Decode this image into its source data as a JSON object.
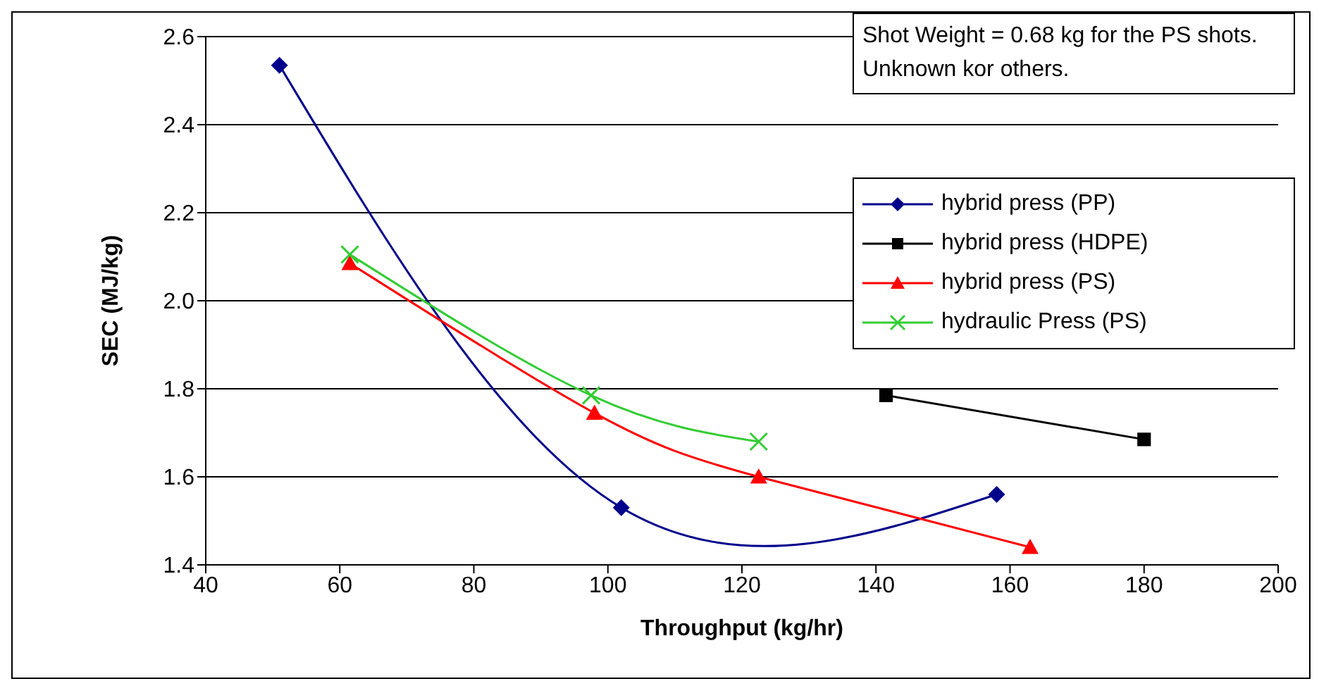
{
  "chart_data": {
    "type": "line",
    "xlabel": "Throughput (kg/hr)",
    "ylabel": "SEC (MJ/kg)",
    "annotations": [
      "Shot Weight = 0.68 kg for the PS shots. Unknown kor others."
    ],
    "xlim": [
      40,
      200
    ],
    "xticks": [
      40,
      60,
      80,
      100,
      120,
      140,
      160,
      180,
      200
    ],
    "ylim": [
      1.4,
      2.6
    ],
    "yticks": [
      {
        "value": 1.4,
        "label": "1.4"
      },
      {
        "value": 1.6,
        "label": "1.6"
      },
      {
        "value": 1.8,
        "label": "1.8"
      },
      {
        "value": 2,
        "label": "2.0"
      },
      {
        "value": 2.2,
        "label": "2.2"
      },
      {
        "value": 2.4,
        "label": "2.4"
      },
      {
        "value": 2.6,
        "label": "2.6"
      }
    ],
    "grid": "y",
    "legend": "top right",
    "series": [
      {
        "name": "hybrid press (PP)",
        "color": "#00008b",
        "marker": "diamond",
        "x": [
          51,
          102,
          158
        ],
        "values": [
          2.535,
          1.53,
          1.56
        ]
      },
      {
        "name": "hybrid press (HDPE)",
        "color": "#000000",
        "marker": "square",
        "x": [
          141.5,
          180
        ],
        "values": [
          1.785,
          1.685
        ]
      },
      {
        "name": "hybrid press (PS)",
        "color": "#ff0000",
        "marker": "triangle",
        "x": [
          61.5,
          98,
          122.5,
          163
        ],
        "values": [
          2.085,
          1.745,
          1.6,
          1.44
        ]
      },
      {
        "name": "hydraulic Press (PS)",
        "color": "#33cc33",
        "marker": "cross",
        "x": [
          61.5,
          97.5,
          122.5
        ],
        "values": [
          2.105,
          1.785,
          1.68
        ]
      }
    ]
  }
}
